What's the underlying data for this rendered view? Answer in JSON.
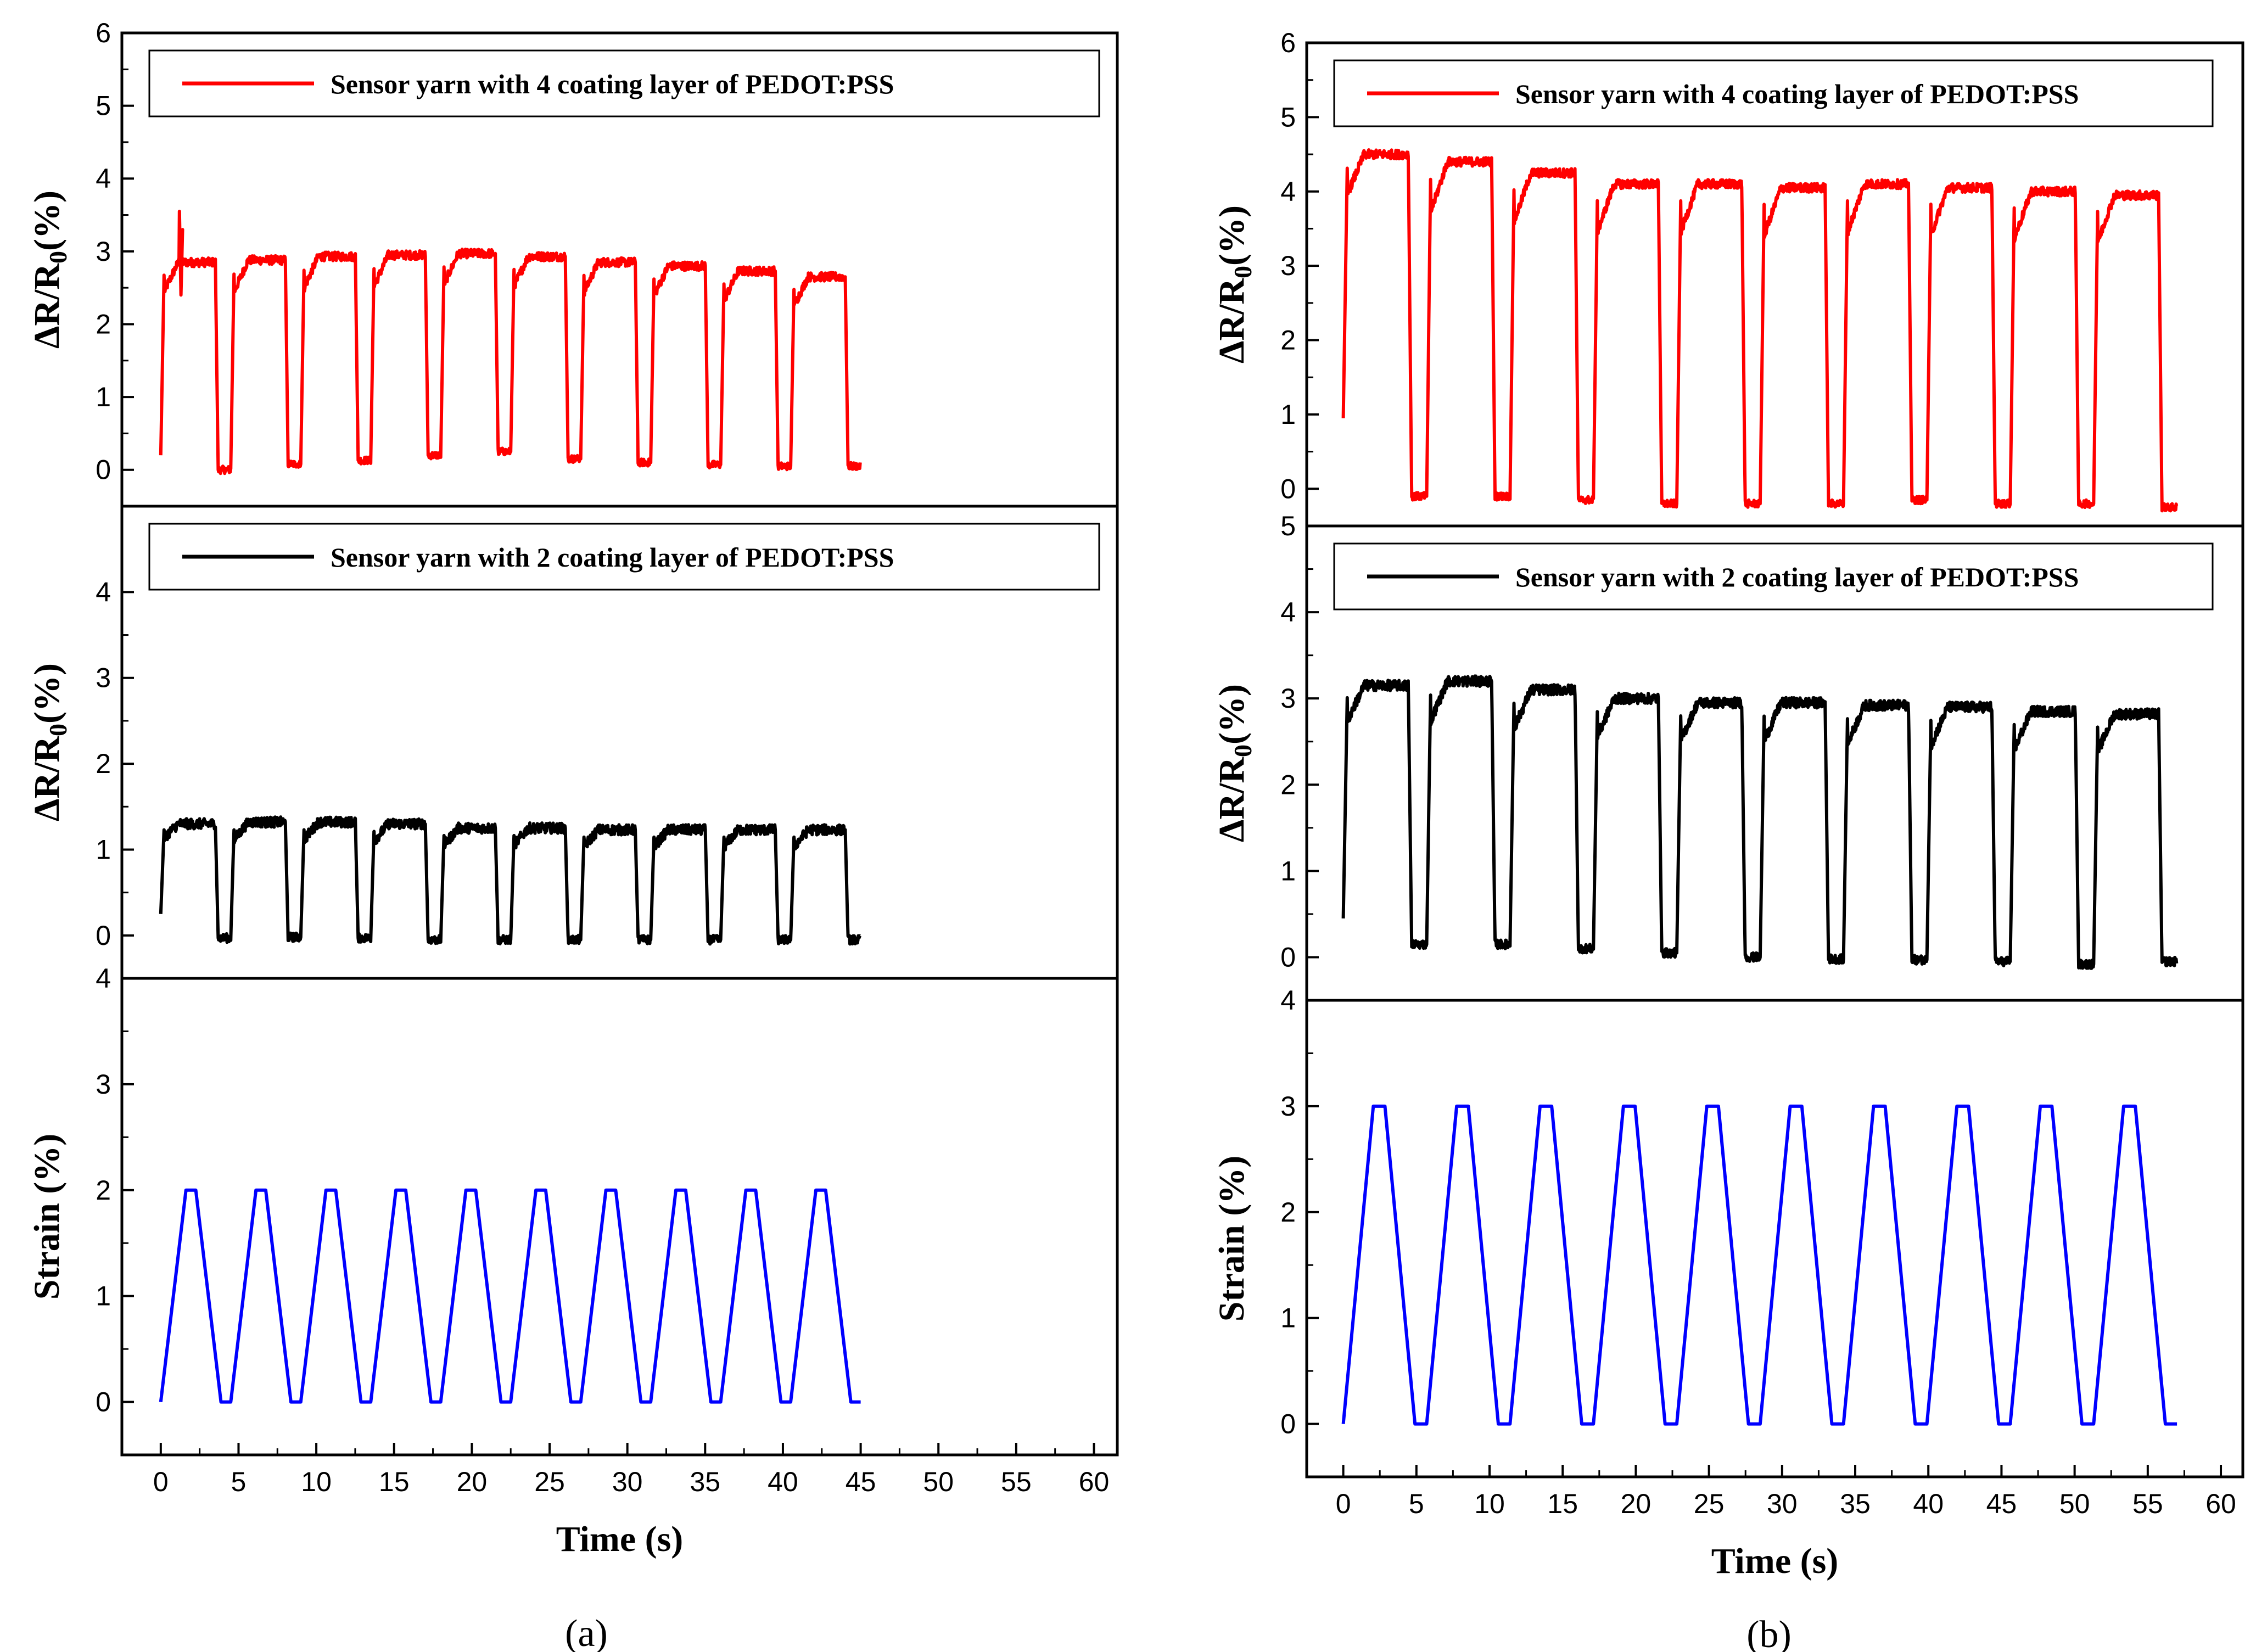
{
  "colors": {
    "coat4": "#ff0000",
    "coat2": "#000000",
    "strain": "#0000ff"
  },
  "chart_data": [
    {
      "type": "line",
      "panel_label": "(a)",
      "xlabel": "Time (s)",
      "xlim": [
        -2.5,
        61.5
      ],
      "xticks": [
        0,
        5,
        10,
        15,
        20,
        25,
        30,
        35,
        40,
        45,
        50,
        55,
        60
      ],
      "subplots": [
        {
          "ylabel": "ΔR/R0(%)",
          "ylim": [
            -0.5,
            6
          ],
          "yticks": [
            0,
            1,
            2,
            3,
            4,
            5,
            6
          ],
          "series": [
            {
              "name": "Sensor yarn with 4 coating layer of PEDOT:PSS",
              "color": "coat4",
              "start": 0.2,
              "period": 4.5,
              "high": [
                2.85,
                2.88,
                2.93,
                2.95,
                2.97,
                2.93,
                2.85,
                2.8,
                2.73,
                2.65
              ],
              "low": [
                0.0,
                0.08,
                0.13,
                0.2,
                0.25,
                0.15,
                0.1,
                0.07,
                0.05,
                0.05
              ],
              "spike": {
                "x": 1.2,
                "y": 3.55
              }
            }
          ]
        },
        {
          "ylabel": "ΔR/R0(%)",
          "ylim": [
            -0.5,
            5
          ],
          "yticks": [
            0,
            1,
            2,
            3,
            4
          ],
          "series": [
            {
              "name": "Sensor yarn with 2 coating layer of PEDOT:PSS",
              "color": "coat2",
              "start": 0.25,
              "period": 4.5,
              "high": [
                1.3,
                1.32,
                1.32,
                1.3,
                1.25,
                1.25,
                1.23,
                1.23,
                1.23,
                1.23
              ],
              "low": [
                -0.03,
                -0.02,
                -0.03,
                -0.05,
                -0.05,
                -0.05,
                -0.05,
                -0.05,
                -0.05,
                -0.05
              ]
            }
          ]
        },
        {
          "ylabel": "Strain (%)",
          "ylim": [
            -0.5,
            4
          ],
          "yticks": [
            0,
            1,
            2,
            3,
            4
          ],
          "series": [
            {
              "name": "",
              "color": "strain",
              "waveform": "trapezoid",
              "period": 4.5,
              "amplitude": 2,
              "cycles": 10
            }
          ]
        }
      ]
    },
    {
      "type": "line",
      "panel_label": "(b)",
      "xlabel": "Time (s)",
      "xlim": [
        -2.5,
        61.5
      ],
      "xticks": [
        0,
        5,
        10,
        15,
        20,
        25,
        30,
        35,
        40,
        45,
        50,
        55,
        60
      ],
      "subplots": [
        {
          "ylabel": "ΔR/R0(%)",
          "ylim": [
            -0.5,
            6
          ],
          "yticks": [
            0,
            1,
            2,
            3,
            4,
            5,
            6
          ],
          "series": [
            {
              "name": "Sensor yarn with 4 coating layer of PEDOT:PSS",
              "color": "coat4",
              "start": 0.95,
              "period": 5.7,
              "high": [
                4.5,
                4.4,
                4.25,
                4.1,
                4.1,
                4.05,
                4.1,
                4.05,
                4.0,
                3.95
              ],
              "low": [
                -0.1,
                -0.1,
                -0.15,
                -0.2,
                -0.2,
                -0.2,
                -0.15,
                -0.2,
                -0.2,
                -0.25
              ]
            }
          ]
        },
        {
          "ylabel": "ΔR/R0(%)",
          "ylim": [
            -0.5,
            5
          ],
          "yticks": [
            0,
            1,
            2,
            3,
            4,
            5
          ],
          "series": [
            {
              "name": "Sensor yarn with 2 coating layer of PEDOT:PSS",
              "color": "coat2",
              "start": 0.45,
              "period": 5.7,
              "high": [
                3.15,
                3.2,
                3.1,
                3.0,
                2.95,
                2.95,
                2.92,
                2.9,
                2.85,
                2.82
              ],
              "low": [
                0.15,
                0.15,
                0.1,
                0.05,
                0.0,
                -0.02,
                -0.03,
                -0.05,
                -0.08,
                -0.05
              ]
            }
          ]
        },
        {
          "ylabel": "Strain (%)",
          "ylim": [
            -0.5,
            4
          ],
          "yticks": [
            0,
            1,
            2,
            3,
            4
          ],
          "series": [
            {
              "name": "",
              "color": "strain",
              "waveform": "trapezoid",
              "period": 5.7,
              "amplitude": 3,
              "cycles": 10
            }
          ]
        }
      ]
    }
  ]
}
